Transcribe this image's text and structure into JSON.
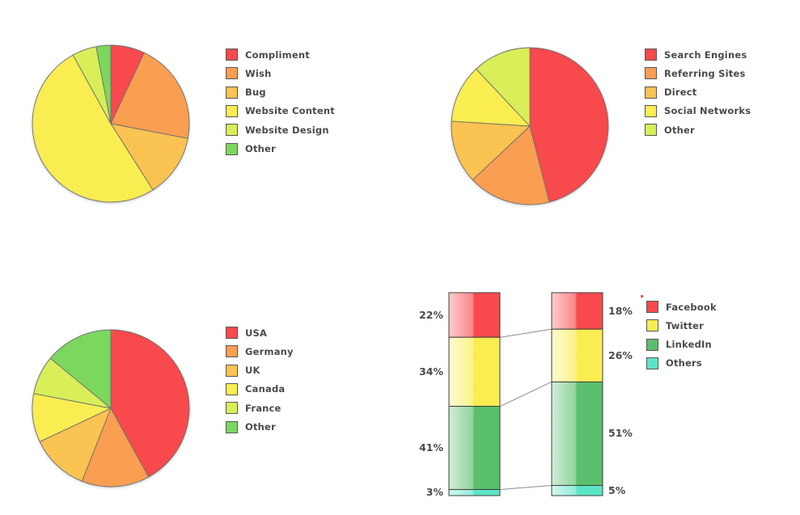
{
  "page": {
    "background": "#ffffff"
  },
  "palette": {
    "red": "#f8494d",
    "orange": "#fa9e51",
    "amber": "#fbc351",
    "yellow": "#f9ed52",
    "lime": "#d9ee58",
    "green": "#7bd75e",
    "linkedin_green": "#5abf6c",
    "teal": "#5ce4c6",
    "text": "#4a4a4a",
    "slice_stroke": "#6f6f6f",
    "bar_border": "#3f3f3f",
    "connector": "#8c8c8c",
    "swatch_border": "#565656"
  },
  "chart_data": [
    {
      "type": "pie",
      "name": "feedback-pie",
      "legend_position": "right",
      "slices": [
        {
          "label": "Compliment",
          "value": 7,
          "color": "#f8494d"
        },
        {
          "label": "Wish",
          "value": 21,
          "color": "#fa9e51"
        },
        {
          "label": "Bug",
          "value": 13,
          "color": "#fbc351"
        },
        {
          "label": "Website Content",
          "value": 51,
          "color": "#f9ed52"
        },
        {
          "label": "Website Design",
          "value": 5,
          "color": "#d9ee58"
        },
        {
          "label": "Other",
          "value": 3,
          "color": "#7bd75e"
        }
      ]
    },
    {
      "type": "pie",
      "name": "traffic-sources-pie",
      "legend_position": "right",
      "slices": [
        {
          "label": "Search Engines",
          "value": 46,
          "color": "#f8494d"
        },
        {
          "label": "Referring Sites",
          "value": 17,
          "color": "#fa9e51"
        },
        {
          "label": "Direct",
          "value": 13,
          "color": "#fbc351"
        },
        {
          "label": "Social Networks",
          "value": 12,
          "color": "#f9ed52"
        },
        {
          "label": "Other",
          "value": 12,
          "color": "#d9ee58"
        }
      ]
    },
    {
      "type": "pie",
      "name": "countries-pie",
      "legend_position": "right",
      "slices": [
        {
          "label": "USA",
          "value": 42,
          "color": "#f8494d"
        },
        {
          "label": "Germany",
          "value": 14,
          "color": "#fa9e51"
        },
        {
          "label": "UK",
          "value": 12,
          "color": "#fbc351"
        },
        {
          "label": "Canada",
          "value": 10,
          "color": "#f9ed52"
        },
        {
          "label": "France",
          "value": 8,
          "color": "#d9ee58"
        },
        {
          "label": "Other",
          "value": 14,
          "color": "#7bd75e"
        }
      ]
    },
    {
      "type": "stacked-bar-comparison",
      "name": "social-networks-comparison",
      "legend_position": "right",
      "bars": 2,
      "series": [
        {
          "name": "Facebook",
          "color": "#f8494d",
          "values": [
            22,
            18
          ],
          "labels": [
            "22%",
            "18%"
          ]
        },
        {
          "name": "Twitter",
          "color": "#f9ed52",
          "values": [
            34,
            26
          ],
          "labels": [
            "34%",
            "26%"
          ]
        },
        {
          "name": "LinkedIn",
          "color": "#5abf6c",
          "values": [
            41,
            51
          ],
          "labels": [
            "41%",
            "51%"
          ]
        },
        {
          "name": "Others",
          "color": "#5ce4c6",
          "values": [
            3,
            5
          ],
          "labels": [
            "3%",
            "5%"
          ]
        }
      ]
    }
  ]
}
